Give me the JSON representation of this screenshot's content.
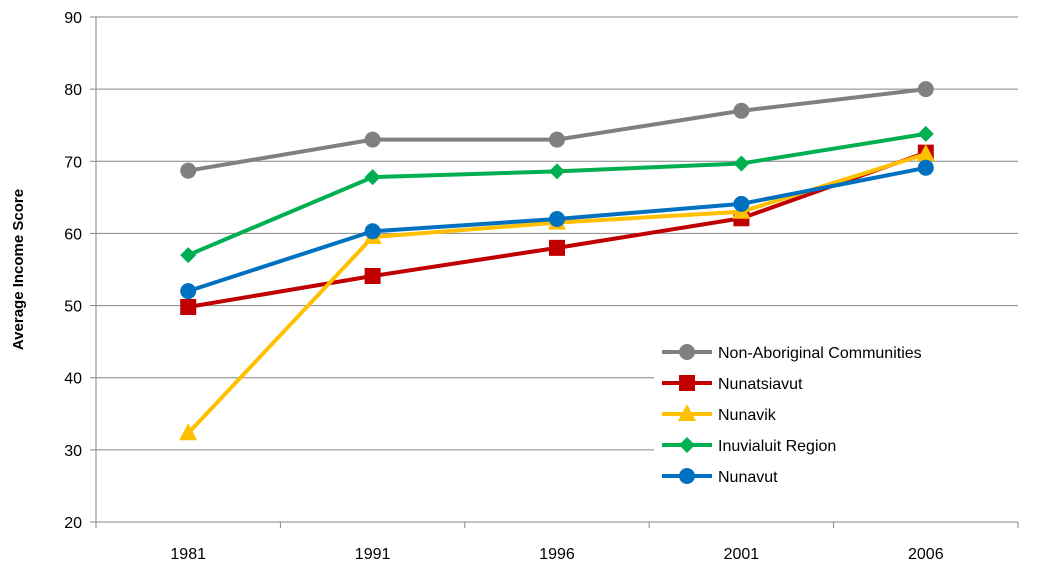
{
  "chart_data": {
    "type": "line",
    "title": "",
    "xlabel": "",
    "ylabel": "Average Income Score",
    "categories": [
      "1981",
      "1991",
      "1996",
      "2001",
      "2006"
    ],
    "ylim": [
      20,
      90
    ],
    "yticks": [
      20,
      30,
      40,
      50,
      60,
      70,
      80,
      90
    ],
    "grid": true,
    "legend_position": "lower-right",
    "series": [
      {
        "name": "Non-Aboriginal Communities",
        "values": [
          68.7,
          73.0,
          73.0,
          77.0,
          80.0
        ],
        "color": "#808080",
        "marker": "circle"
      },
      {
        "name": "Nunatsiavut",
        "values": [
          49.8,
          54.1,
          58.0,
          62.1,
          71.2
        ],
        "color": "#C00000",
        "marker": "square"
      },
      {
        "name": "Nunavik",
        "values": [
          32.3,
          59.5,
          61.5,
          63.0,
          71.0
        ],
        "color": "#FFC000",
        "marker": "triangle"
      },
      {
        "name": "Inuvialuit Region",
        "values": [
          57.0,
          67.8,
          68.6,
          69.7,
          73.8
        ],
        "color": "#00B050",
        "marker": "diamond"
      },
      {
        "name": "Nunavut",
        "values": [
          52.0,
          60.3,
          62.0,
          64.1,
          69.1
        ],
        "color": "#0070C0",
        "marker": "circle"
      }
    ]
  }
}
